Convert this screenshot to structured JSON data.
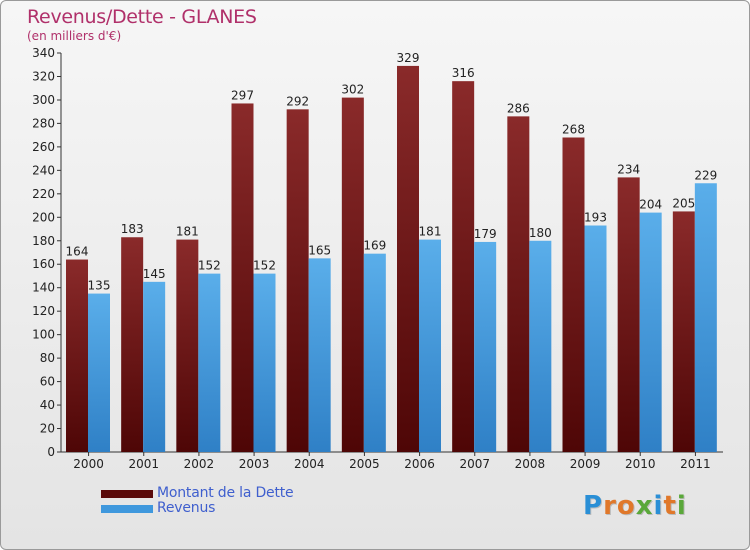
{
  "title": "Revenus/Dette - GLANES",
  "subtitle": "(en milliers d'€)",
  "logo": {
    "text": "Proxiti",
    "letter_colors": [
      "#2a8fd6",
      "#e0782a",
      "#e0782a",
      "#5aa83a",
      "#2a8fd6",
      "#e0782a",
      "#5aa83a"
    ]
  },
  "colors": {
    "dette": "#7a1c1c",
    "revenus": "#3f98dd",
    "title": "#b0306a",
    "legend_text": "#3f5fce"
  },
  "chart_data": {
    "type": "bar",
    "categories": [
      "2000",
      "2001",
      "2002",
      "2003",
      "2004",
      "2005",
      "2006",
      "2007",
      "2008",
      "2009",
      "2010",
      "2011"
    ],
    "series": [
      {
        "name": "Montant de la Dette",
        "values": [
          164,
          183,
          181,
          297,
          292,
          302,
          329,
          316,
          286,
          268,
          234,
          205
        ]
      },
      {
        "name": "Revenus",
        "values": [
          135,
          145,
          152,
          152,
          165,
          169,
          181,
          179,
          180,
          193,
          204,
          229
        ]
      }
    ],
    "ylim": [
      0,
      340
    ],
    "yticks": [
      0,
      20,
      40,
      60,
      80,
      100,
      120,
      140,
      160,
      180,
      200,
      220,
      240,
      260,
      280,
      300,
      320,
      340
    ],
    "grid": false,
    "legend": "bottom-left"
  }
}
